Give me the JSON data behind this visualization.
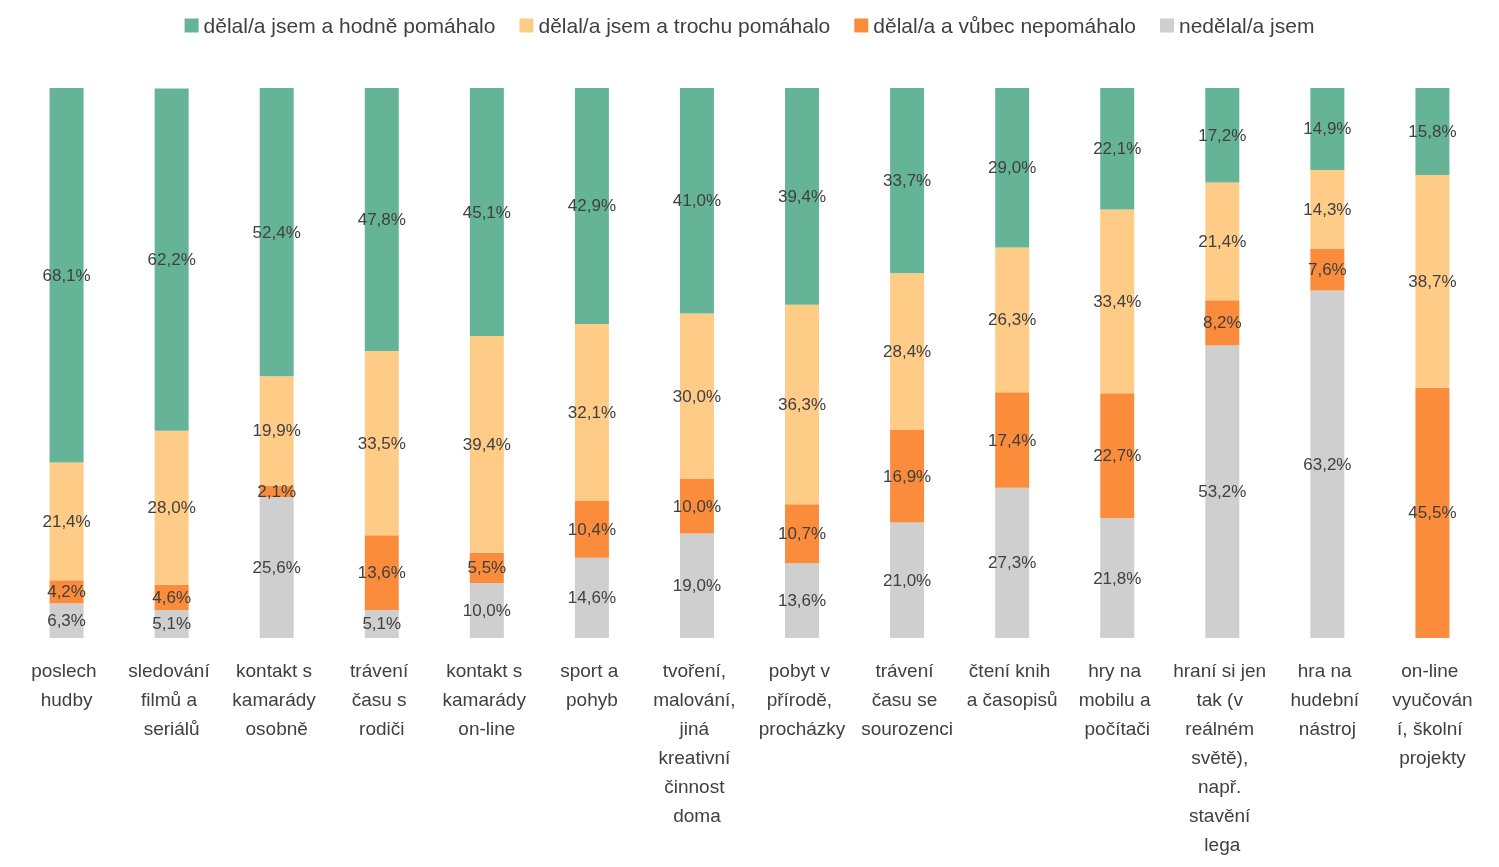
{
  "chart_data": {
    "type": "bar",
    "stacked": true,
    "legend": "top",
    "ylim": [
      0,
      100
    ],
    "tick_labels": "x",
    "categories": [
      "poslech hudby",
      "sledování filmů a seriálů",
      "kontakt s kamarády osobně",
      "trávení času s rodiči",
      "kontakt s kamarády on-line",
      "sport a pohyb",
      "tvoření, malování, jiná kreativní činnost doma",
      "pobyt v přírodě, procházky",
      "trávení času se sourozenci",
      "čtení knih a časopisů",
      "hry na mobilu a počítači",
      "hraní si jen tak (v reálném světě), např. stavění lega",
      "hra na hudební nástroj",
      "on-line vyučování, školní projekty"
    ],
    "series": [
      {
        "name": "nedělal/a jsem",
        "color": "#d0cfcf",
        "values": [
          6.3,
          5.1,
          25.6,
          5.1,
          10.0,
          14.6,
          19.0,
          13.6,
          21.0,
          27.3,
          21.8,
          53.2,
          63.2,
          null
        ],
        "value_labels": [
          "6,3%",
          "5,1%",
          "25,6%",
          "5,1%",
          "10,0%",
          "14,6%",
          "19,0%",
          "13,6%",
          "21,0%",
          "27,3%",
          "21,8%",
          "53,2%",
          "63,2%",
          null
        ]
      },
      {
        "name": "dělal/a a vůbec nepomáhalo",
        "color": "#fb8c3c",
        "values": [
          4.2,
          4.6,
          2.1,
          13.6,
          5.5,
          10.4,
          10.0,
          10.7,
          16.9,
          17.4,
          22.7,
          8.2,
          7.6,
          45.5
        ],
        "value_labels": [
          "4,2%",
          "4,6%",
          "2,1%",
          "13,6%",
          "5,5%",
          "10,4%",
          "10,0%",
          "10,7%",
          "16,9%",
          "17,4%",
          "22,7%",
          "8,2%",
          "7,6%",
          "45,5%"
        ]
      },
      {
        "name": "dělal/a jsem a trochu pomáhalo",
        "color": "#ffcc88",
        "values": [
          21.4,
          28.0,
          19.9,
          33.5,
          39.4,
          32.1,
          30.0,
          36.3,
          28.4,
          26.3,
          33.4,
          21.4,
          14.3,
          38.7
        ],
        "value_labels": [
          "21,4%",
          "28,0%",
          "19,9%",
          "33,5%",
          "39,4%",
          "32,1%",
          "30,0%",
          "36,3%",
          "28,4%",
          "26,3%",
          "33,4%",
          "21,4%",
          "14,3%",
          "38,7%"
        ]
      },
      {
        "name": "dělal/a jsem a hodně pomáhalo",
        "color": "#66b497",
        "values": [
          68.1,
          62.2,
          52.4,
          47.8,
          45.1,
          42.9,
          41.0,
          39.4,
          33.7,
          29.0,
          22.1,
          17.2,
          14.9,
          15.8
        ],
        "value_labels": [
          "68,1%",
          "62,2%",
          "52,4%",
          "47,8%",
          "45,1%",
          "42,9%",
          "41,0%",
          "39,4%",
          "33,7%",
          "29,0%",
          "22,1%",
          "17,2%",
          "14,9%",
          "15,8%"
        ]
      }
    ]
  }
}
